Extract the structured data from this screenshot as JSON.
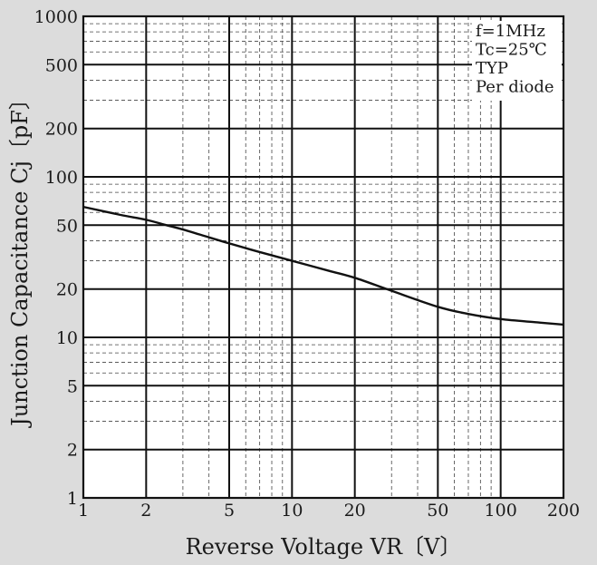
{
  "chart_data": {
    "type": "line",
    "xscale": "log",
    "yscale": "log",
    "xlim": [
      1,
      200
    ],
    "ylim": [
      1,
      1000
    ],
    "xlabel": "Reverse Voltage  VR〔V〕",
    "ylabel": "Junction Capacitance  Cj〔pF〕",
    "xticks": [
      1,
      2,
      5,
      10,
      20,
      50,
      100,
      200
    ],
    "xtick_labels": [
      "1",
      "2",
      "5",
      "10",
      "20",
      "50",
      "100",
      "200"
    ],
    "yticks": [
      1,
      2,
      5,
      10,
      20,
      50,
      100,
      200,
      500,
      1000
    ],
    "ytick_labels": [
      "1",
      "2",
      "5",
      "10",
      "20",
      "50",
      "100",
      "200",
      "500",
      "1000"
    ],
    "grid": true,
    "annotations": [
      "f=1MHz",
      "Tc=25℃",
      "TYP",
      "Per diode"
    ],
    "series": [
      {
        "x": [
          1,
          1.5,
          2,
          2.5,
          3,
          4,
          5,
          7,
          10,
          15,
          20,
          30,
          50,
          70,
          100,
          150,
          200
        ],
        "y": [
          65,
          58,
          54,
          50,
          47,
          42,
          38.5,
          34,
          30,
          26,
          23.5,
          19.5,
          15.5,
          14,
          13,
          12.4,
          12
        ]
      }
    ]
  }
}
